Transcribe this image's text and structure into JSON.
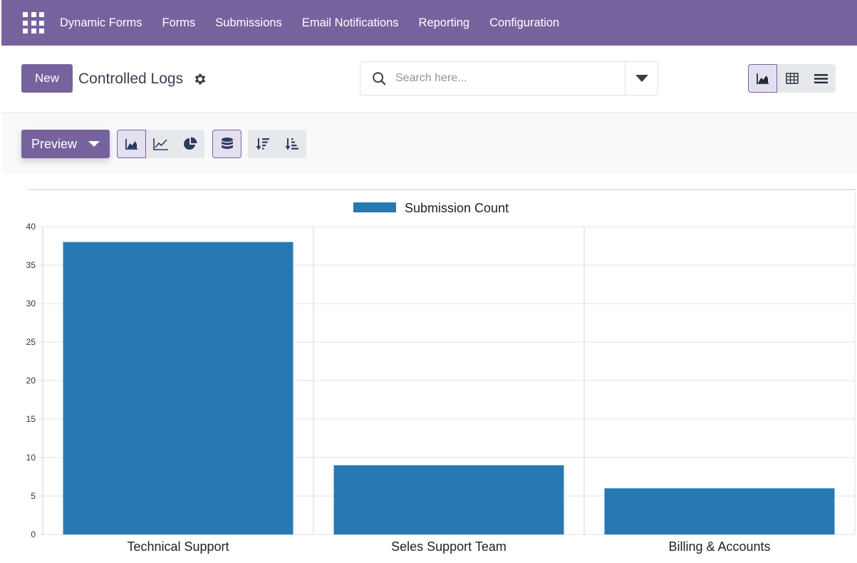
{
  "navbar": {
    "apps_icon": "apps-grid-icon",
    "brand": "Dynamic Forms",
    "items": [
      "Forms",
      "Submissions",
      "Email Notifications",
      "Reporting",
      "Configuration"
    ]
  },
  "control_panel": {
    "new_label": "New",
    "title": "Controlled Logs",
    "settings_icon": "gear-icon",
    "search": {
      "placeholder": "Search here...",
      "value": ""
    },
    "views": [
      {
        "name": "graph",
        "icon": "area-chart-icon",
        "active": true
      },
      {
        "name": "pivot",
        "icon": "table-grid-icon",
        "active": false
      },
      {
        "name": "list",
        "icon": "list-icon",
        "active": false
      }
    ]
  },
  "graph_toolbar": {
    "measure_label": "Preview",
    "chart_types": [
      {
        "name": "bar",
        "icon": "bar-chart-icon",
        "active": true
      },
      {
        "name": "line",
        "icon": "line-chart-icon",
        "active": false
      },
      {
        "name": "pie",
        "icon": "pie-chart-icon",
        "active": false
      }
    ],
    "stacked": {
      "icon": "database-icon",
      "active": true
    },
    "sort": [
      {
        "name": "descending",
        "icon": "sort-descending-icon"
      },
      {
        "name": "ascending",
        "icon": "sort-ascending-icon"
      }
    ]
  },
  "colors": {
    "brand": "#76639e",
    "bar": "#2879b1",
    "active_bg": "#e4dff0"
  },
  "chart_data": {
    "type": "bar",
    "categories": [
      "Technical Support",
      "Seles Support Team",
      "Billing & Accounts"
    ],
    "series": [
      {
        "name": "Submission Count",
        "values": [
          38,
          9,
          6
        ]
      }
    ],
    "ylim": [
      0,
      40
    ],
    "yticks": [
      0,
      5,
      10,
      15,
      20,
      25,
      30,
      35,
      40
    ],
    "grid": true,
    "legend": "top-center",
    "xlabel": "",
    "ylabel": ""
  }
}
